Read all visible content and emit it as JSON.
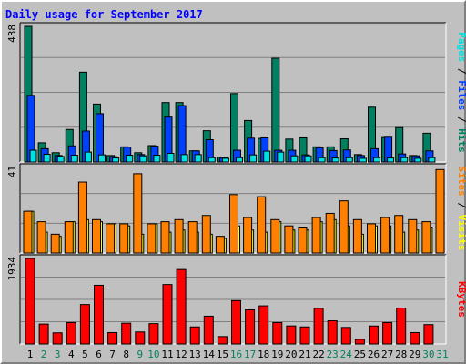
{
  "title": "Daily usage for September 2017",
  "chart_data": {
    "type": "bar",
    "title": "Daily usage for September 2017",
    "categories": [
      "1",
      "2",
      "3",
      "4",
      "5",
      "6",
      "7",
      "8",
      "9",
      "10",
      "11",
      "12",
      "13",
      "14",
      "15",
      "16",
      "17",
      "18",
      "19",
      "20",
      "21",
      "22",
      "23",
      "24",
      "25",
      "26",
      "27",
      "28",
      "29",
      "30",
      "31"
    ],
    "weekend_days": [
      "2",
      "3",
      "9",
      "10",
      "16",
      "17",
      "23",
      "24",
      "30",
      "31"
    ],
    "panels": [
      {
        "id": "hits-files-pages",
        "y_max_label": "438",
        "ylim": [
          0,
          438
        ],
        "axis_label_parts": [
          {
            "text": "Pages",
            "color": "#00e0e0"
          },
          {
            "text": " / ",
            "color": "#000000"
          },
          {
            "text": "Files",
            "color": "#0040ff"
          },
          {
            "text": " / ",
            "color": "#000000"
          },
          {
            "text": "Hits",
            "color": "#008060"
          }
        ],
        "series": [
          {
            "name": "Hits",
            "color": "#008060",
            "values": [
              438,
              62,
              30,
              105,
              290,
              187,
              21,
              49,
              30,
              53,
              192,
              192,
              36,
              101,
              16,
              221,
              134,
              76,
              335,
              74,
              78,
              49,
              49,
              75,
              24,
              177,
              79,
              111,
              21,
              93,
              0
            ]
          },
          {
            "name": "Files",
            "color": "#0040ff",
            "values": [
              215,
              43,
              21,
              52,
              100,
              156,
              17,
              48,
              24,
              51,
              145,
              182,
              36,
              72,
              14,
              38,
              77,
              78,
              38,
              38,
              23,
              46,
              37,
              39,
              21,
              43,
              80,
              26,
              20,
              36,
              0
            ]
          },
          {
            "name": "Pages",
            "color": "#00e0e0",
            "values": [
              38,
              25,
              18,
              22,
              32,
              23,
              13,
              22,
              20,
              22,
              28,
              24,
              24,
              14,
              12,
              14,
              23,
              35,
              32,
              20,
              20,
              14,
              13,
              14,
              12,
              14,
              13,
              14,
              12,
              14,
              0
            ]
          }
        ]
      },
      {
        "id": "visits-sites",
        "y_max_label": "41",
        "ylim": [
          0,
          41
        ],
        "axis_label_parts": [
          {
            "text": "Sites",
            "color": "#ff8000"
          },
          {
            "text": " / ",
            "color": "#000000"
          },
          {
            "text": "Visits",
            "color": "#ffff00"
          }
        ],
        "series": [
          {
            "name": "Visits",
            "color": "#ffff00",
            "values": [
              20,
              10,
              8,
              15,
              16,
              15,
              14,
              13,
              9,
              14,
              10,
              11,
              10,
              9,
              7,
              13,
              11,
              10,
              15,
              11,
              11,
              15,
              16,
              13,
              9,
              13,
              13,
              10,
              11,
              12,
              0
            ]
          },
          {
            "name": "Sites",
            "color": "#ff8000",
            "values": [
              20,
              15,
              9,
              15,
              34,
              16,
              14,
              14,
              38,
              14,
              15,
              16,
              15,
              18,
              8,
              28,
              17,
              27,
              16,
              13,
              12,
              17,
              19,
              25,
              16,
              14,
              17,
              18,
              16,
              15,
              40
            ]
          }
        ]
      },
      {
        "id": "kbytes",
        "y_max_label": "1934",
        "ylim": [
          0,
          1934
        ],
        "axis_label_parts": [
          {
            "text": "KBytes",
            "color": "#ff0000"
          }
        ],
        "series": [
          {
            "name": "KBytes",
            "color": "#ff0000",
            "values": [
              1934,
              450,
              252,
              484,
              892,
              1328,
              258,
              470,
              272,
              460,
              1345,
              1684,
              386,
              629,
              168,
              980,
              772,
              862,
              484,
              408,
              386,
              807,
              524,
              374,
              104,
              406,
              484,
              812,
              258,
              438,
              0
            ]
          }
        ]
      }
    ]
  }
}
